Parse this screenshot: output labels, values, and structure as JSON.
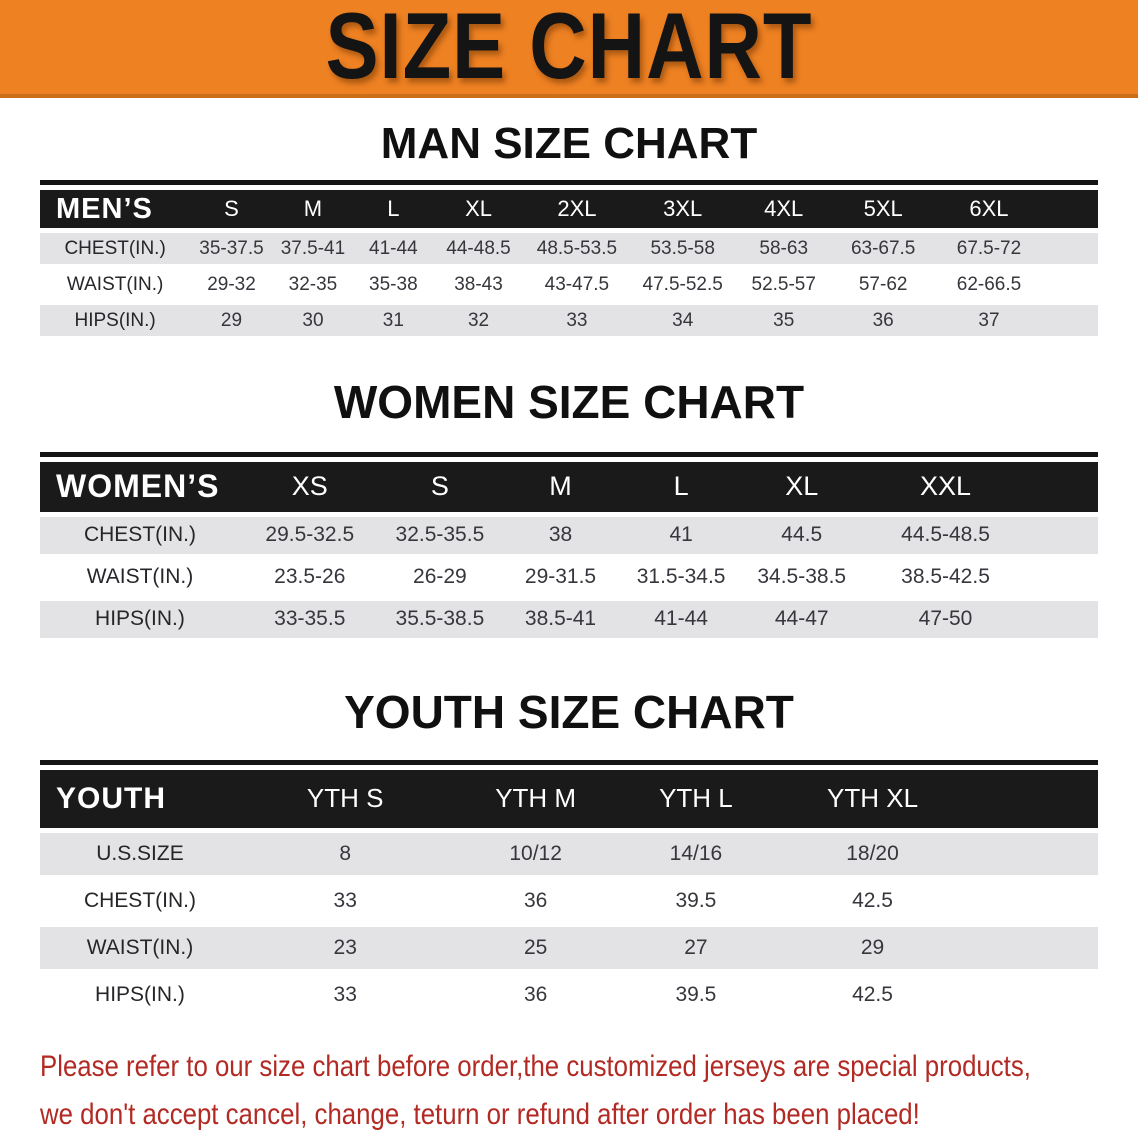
{
  "banner": {
    "title": "SIZE CHART"
  },
  "colors": {
    "accent_orange": "#EE8122",
    "band_black": "#1A1A1A",
    "stripe_gray": "#E3E3E5",
    "notice_red": "#B22A23"
  },
  "chart_data": [
    {
      "type": "table",
      "id": "men",
      "title": "MAN SIZE CHART",
      "corner_label": "MEN’S",
      "columns": [
        "S",
        "M",
        "L",
        "XL",
        "2XL",
        "3XL",
        "4XL",
        "5XL",
        "6XL"
      ],
      "rows": [
        {
          "label": "CHEST(IN.)",
          "values": [
            "35-37.5",
            "37.5-41",
            "41-44",
            "44-48.5",
            "48.5-53.5",
            "53.5-58",
            "58-63",
            "63-67.5",
            "67.5-72"
          ]
        },
        {
          "label": "WAIST(IN.)",
          "values": [
            "29-32",
            "32-35",
            "35-38",
            "38-43",
            "43-47.5",
            "47.5-52.5",
            "52.5-57",
            "57-62",
            "62-66.5"
          ]
        },
        {
          "label": "HIPS(IN.)",
          "values": [
            "29",
            "30",
            "31",
            "32",
            "33",
            "34",
            "35",
            "36",
            "37"
          ]
        }
      ]
    },
    {
      "type": "table",
      "id": "women",
      "title": "WOMEN SIZE CHART",
      "corner_label": "WOMEN’S",
      "columns": [
        "XS",
        "S",
        "M",
        "L",
        "XL",
        "XXL"
      ],
      "rows": [
        {
          "label": "CHEST(IN.)",
          "values": [
            "29.5-32.5",
            "32.5-35.5",
            "38",
            "41",
            "44.5",
            "44.5-48.5"
          ]
        },
        {
          "label": "WAIST(IN.)",
          "values": [
            "23.5-26",
            "26-29",
            "29-31.5",
            "31.5-34.5",
            "34.5-38.5",
            "38.5-42.5"
          ]
        },
        {
          "label": "HIPS(IN.)",
          "values": [
            "33-35.5",
            "35.5-38.5",
            "38.5-41",
            "41-44",
            "44-47",
            "47-50"
          ]
        }
      ]
    },
    {
      "type": "table",
      "id": "youth",
      "title": "YOUTH SIZE CHART",
      "corner_label": "YOUTH",
      "columns": [
        "YTH S",
        "YTH M",
        "YTH L",
        "YTH XL"
      ],
      "rows": [
        {
          "label": "U.S.SIZE",
          "values": [
            "8",
            "10/12",
            "14/16",
            "18/20"
          ]
        },
        {
          "label": "CHEST(IN.)",
          "values": [
            "33",
            "36",
            "39.5",
            "42.5"
          ]
        },
        {
          "label": "WAIST(IN.)",
          "values": [
            "23",
            "25",
            "27",
            "29"
          ]
        },
        {
          "label": "HIPS(IN.)",
          "values": [
            "33",
            "36",
            "39.5",
            "42.5"
          ]
        }
      ]
    }
  ],
  "footer": {
    "line1": "Please refer to our size chart before order,the customized jerseys are special products,",
    "line2": "we don't accept cancel, change, teturn or refund after order has been placed!"
  }
}
